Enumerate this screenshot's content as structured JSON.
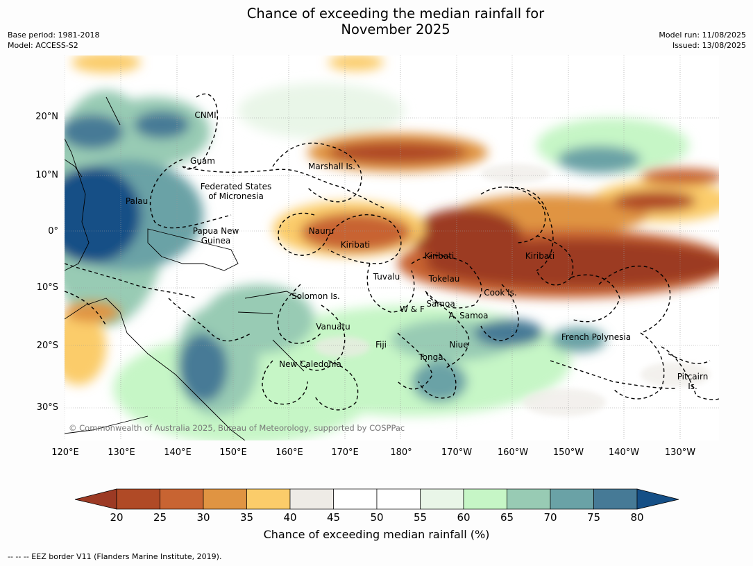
{
  "title": "Chance of exceeding the median rainfall for\nNovember 2025",
  "meta_left": {
    "base_period": "Base period: 1981-2018",
    "model": "Model: ACCESS-S2"
  },
  "meta_right": {
    "model_run": "Model run: 11/08/2025",
    "issued": "Issued: 13/08/2025"
  },
  "lat_labels": [
    "20°N",
    "10°N",
    "0°",
    "10°S",
    "20°S",
    "30°S"
  ],
  "lon_labels": [
    "120°E",
    "130°E",
    "140°E",
    "150°E",
    "160°E",
    "170°E",
    "180°",
    "170°W",
    "160°W",
    "150°W",
    "140°W",
    "130°W"
  ],
  "countries": [
    "CNMI",
    "Guam",
    "Marshall Is.",
    "Federated States\nof Micronesia",
    "Palau",
    "Nauru",
    "Papua New\nGuinea",
    "Kiribati",
    "Kiribati",
    "Kiribati",
    "Tuvalu",
    "Tokelau",
    "Cook Is.",
    "Solomon Is.",
    "Samoa",
    "W & F",
    "A. Samoa",
    "Vanuatu",
    "Fiji",
    "Niue",
    "French Polynesia",
    "Tonga",
    "New Caledonia",
    "Pitcairn\nIs."
  ],
  "copyright": "© Commonwealth of Australia 2025, Bureau of Meteorology, supported by COSPPac",
  "colorbar": {
    "ticks": [
      "20",
      "25",
      "30",
      "35",
      "40",
      "45",
      "50",
      "55",
      "60",
      "65",
      "70",
      "75",
      "80"
    ],
    "colors": [
      "#9c3a24",
      "#b04a26",
      "#c86432",
      "#e09442",
      "#fbcc6a",
      "#eeebe6",
      "#ffffff",
      "#ffffff",
      "#e9f6e8",
      "#c6f6c6",
      "#98cbb4",
      "#6aa2a6",
      "#467a96",
      "#154f86"
    ],
    "label": "Chance of exceeding median rainfall (%)"
  },
  "footnote": "--  --  -- EEZ border V11 (Flanders Marine Institute, 2019)."
}
